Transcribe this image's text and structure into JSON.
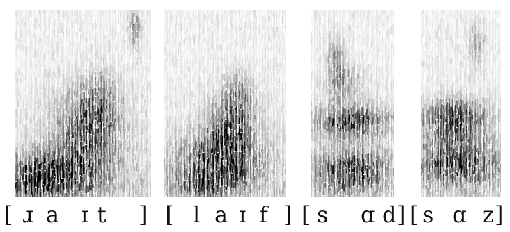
{
  "figure": {
    "spectrograms": [
      {
        "segments": [
          "[",
          "ɹ",
          "a",
          "ɪ",
          "t",
          "]"
        ]
      },
      {
        "segments": [
          "[",
          "l",
          "a",
          "ɪ",
          "f",
          "]"
        ]
      },
      {
        "segments": [
          "[",
          "s",
          "ɑ",
          "d",
          "]"
        ]
      },
      {
        "segments": [
          "[",
          "s",
          "ɑ",
          "z",
          "]"
        ]
      }
    ],
    "colors": {
      "ink": "#111111",
      "background": "#ffffff"
    }
  }
}
